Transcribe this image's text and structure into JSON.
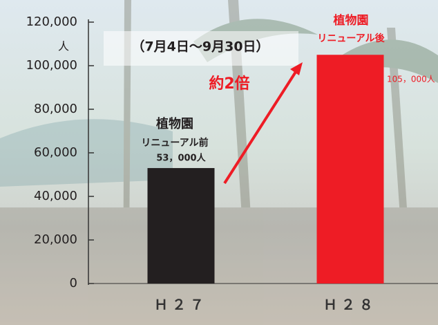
{
  "chart_data": {
    "type": "bar",
    "subtitle": "（7月4日～9月30日）",
    "y_unit": "人",
    "categories": [
      "Ｈ２７",
      "Ｈ２８"
    ],
    "values": [
      53000,
      105000
    ],
    "value_labels": [
      "53，000人",
      "105，000人"
    ],
    "colors": [
      "#231f20",
      "#ee1c25"
    ],
    "ylim": [
      0,
      120000
    ],
    "yticks": [
      0,
      {
        "value": 20000,
        "label": "20,000"
      },
      {
        "value": 40000,
        "label": "40,000"
      },
      {
        "value": 60000,
        "label": "60,000"
      },
      {
        "value": 80000,
        "label": "80,000"
      },
      {
        "value": 100000,
        "label": "100,000"
      },
      {
        "value": 120000,
        "label": "120,000"
      }
    ],
    "annotations": [
      "植物園",
      "リニューアル前",
      "植物園",
      "リニューアル後",
      "約2倍"
    ]
  }
}
